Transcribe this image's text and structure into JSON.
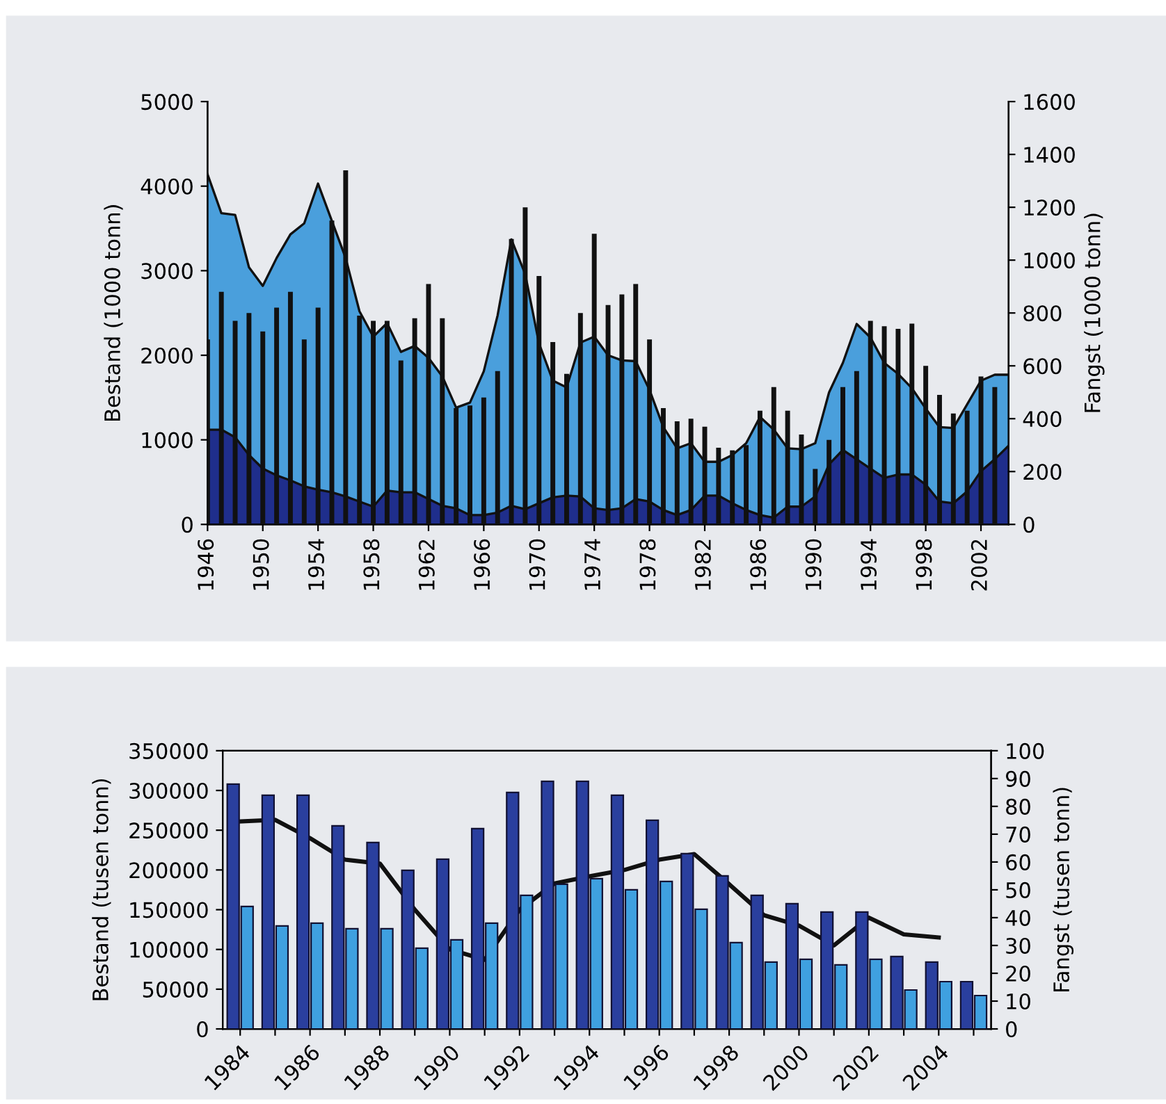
{
  "chart_data": [
    {
      "type": "area",
      "xlabel": null,
      "ylabel": "Bestand (1000 tonn)",
      "y2label": "Fangst (1000 tonn)",
      "x": [
        1946,
        1947,
        1948,
        1949,
        1950,
        1951,
        1952,
        1953,
        1954,
        1955,
        1956,
        1957,
        1958,
        1959,
        1960,
        1961,
        1962,
        1963,
        1964,
        1965,
        1966,
        1967,
        1968,
        1969,
        1970,
        1971,
        1972,
        1973,
        1974,
        1975,
        1976,
        1977,
        1978,
        1979,
        1980,
        1981,
        1982,
        1983,
        1984,
        1985,
        1986,
        1987,
        1988,
        1989,
        1990,
        1991,
        1992,
        1993,
        1994,
        1995,
        1996,
        1997,
        1998,
        1999,
        2000,
        2001,
        2002,
        2003,
        2004
      ],
      "series": [
        {
          "color": "#4a9fdc",
          "values": [
            4140,
            3680,
            3660,
            3040,
            2820,
            3150,
            3430,
            3560,
            4030,
            3590,
            3150,
            2520,
            2220,
            2380,
            2040,
            2110,
            1970,
            1750,
            1380,
            1440,
            1810,
            2470,
            3370,
            2960,
            2140,
            1700,
            1620,
            2150,
            2220,
            2000,
            1940,
            1930,
            1590,
            1150,
            900,
            960,
            740,
            740,
            820,
            960,
            1270,
            1120,
            900,
            890,
            960,
            1560,
            1910,
            2370,
            2210,
            1910,
            1780,
            1610,
            1370,
            1150,
            1140,
            1420,
            1700,
            1770,
            1770
          ]
        },
        {
          "color": "#1f2e8c",
          "values": [
            1120,
            1120,
            1030,
            820,
            660,
            580,
            520,
            450,
            410,
            380,
            330,
            270,
            210,
            400,
            380,
            380,
            300,
            220,
            190,
            110,
            110,
            140,
            220,
            180,
            250,
            320,
            340,
            330,
            190,
            170,
            190,
            300,
            270,
            170,
            110,
            170,
            340,
            340,
            250,
            170,
            110,
            80,
            210,
            210,
            330,
            710,
            880,
            770,
            660,
            550,
            590,
            590,
            470,
            270,
            250,
            390,
            630,
            770,
            930
          ]
        },
        {
          "type": "bar",
          "axis": "y2",
          "color": "#111111",
          "x": [
            1946,
            1947,
            1948,
            1949,
            1950,
            1951,
            1952,
            1953,
            1954,
            1955,
            1956,
            1957,
            1958,
            1959,
            1960,
            1961,
            1962,
            1963,
            1964,
            1965,
            1966,
            1967,
            1968,
            1969,
            1970,
            1971,
            1972,
            1973,
            1974,
            1975,
            1976,
            1977,
            1978,
            1979,
            1980,
            1981,
            1982,
            1983,
            1984,
            1985,
            1986,
            1987,
            1988,
            1989,
            1990,
            1991,
            1992,
            1993,
            1994,
            1995,
            1996,
            1997,
            1998,
            1999,
            2000,
            2001,
            2002,
            2003
          ],
          "values": [
            700,
            880,
            770,
            800,
            730,
            820,
            880,
            700,
            820,
            1150,
            1340,
            790,
            770,
            770,
            620,
            780,
            910,
            780,
            440,
            450,
            480,
            580,
            1080,
            1200,
            940,
            690,
            570,
            800,
            1100,
            830,
            870,
            910,
            700,
            440,
            390,
            400,
            370,
            290,
            280,
            300,
            430,
            520,
            430,
            340,
            210,
            320,
            520,
            580,
            770,
            750,
            740,
            760,
            600,
            490,
            420,
            430,
            560,
            520
          ]
        }
      ],
      "xlim": [
        1946,
        2004
      ],
      "xticks": [
        1946,
        1950,
        1954,
        1958,
        1962,
        1966,
        1970,
        1974,
        1978,
        1982,
        1986,
        1990,
        1994,
        1998,
        2002
      ],
      "ylim": [
        0,
        5000
      ],
      "yticks": [
        0,
        1000,
        2000,
        3000,
        4000,
        5000
      ],
      "y2lim": [
        0,
        1600
      ],
      "y2ticks": [
        0,
        200,
        400,
        600,
        800,
        1000,
        1200,
        1400,
        1600
      ],
      "grid": false,
      "legend": false
    },
    {
      "type": "bar",
      "ylabel": "Bestand (tusen tonn)",
      "y2label": "Fangst (tusen tonn)",
      "categories": [
        "1984",
        null,
        "1986",
        null,
        "1988",
        null,
        "1990",
        null,
        "1992",
        null,
        "1994",
        null,
        "1996",
        null,
        "1998",
        null,
        "2000",
        null,
        "2002",
        null,
        "2004",
        null
      ],
      "series": [
        {
          "axis": "y2",
          "color": "#2a3f9e",
          "values": [
            88,
            84,
            84,
            73,
            67,
            57,
            61,
            72,
            85,
            89,
            89,
            84,
            75,
            63,
            55,
            48,
            45,
            42,
            42,
            26,
            24,
            17
          ]
        },
        {
          "axis": "y2",
          "color": "#3fa0e0",
          "values": [
            44,
            37,
            38,
            36,
            36,
            29,
            32,
            38,
            48,
            52,
            54,
            50,
            53,
            43,
            31,
            24,
            25,
            23,
            25,
            14,
            17,
            12
          ]
        },
        {
          "type": "line",
          "axis": "y",
          "color": "#111111",
          "values": [
            261000,
            263000,
            240000,
            213000,
            208000,
            150000,
            100000,
            87000,
            150000,
            183000,
            192000,
            200000,
            213000,
            220000,
            182000,
            143000,
            130000,
            105000,
            140000,
            119000,
            115000,
            null
          ]
        }
      ],
      "ylim": [
        0,
        350000
      ],
      "yticks": [
        0,
        50000,
        100000,
        150000,
        200000,
        250000,
        300000,
        350000
      ],
      "y2lim": [
        0,
        100
      ],
      "y2ticks": [
        0,
        10,
        20,
        30,
        40,
        50,
        60,
        70,
        80,
        90,
        100
      ],
      "grid": false,
      "legend": false
    }
  ]
}
